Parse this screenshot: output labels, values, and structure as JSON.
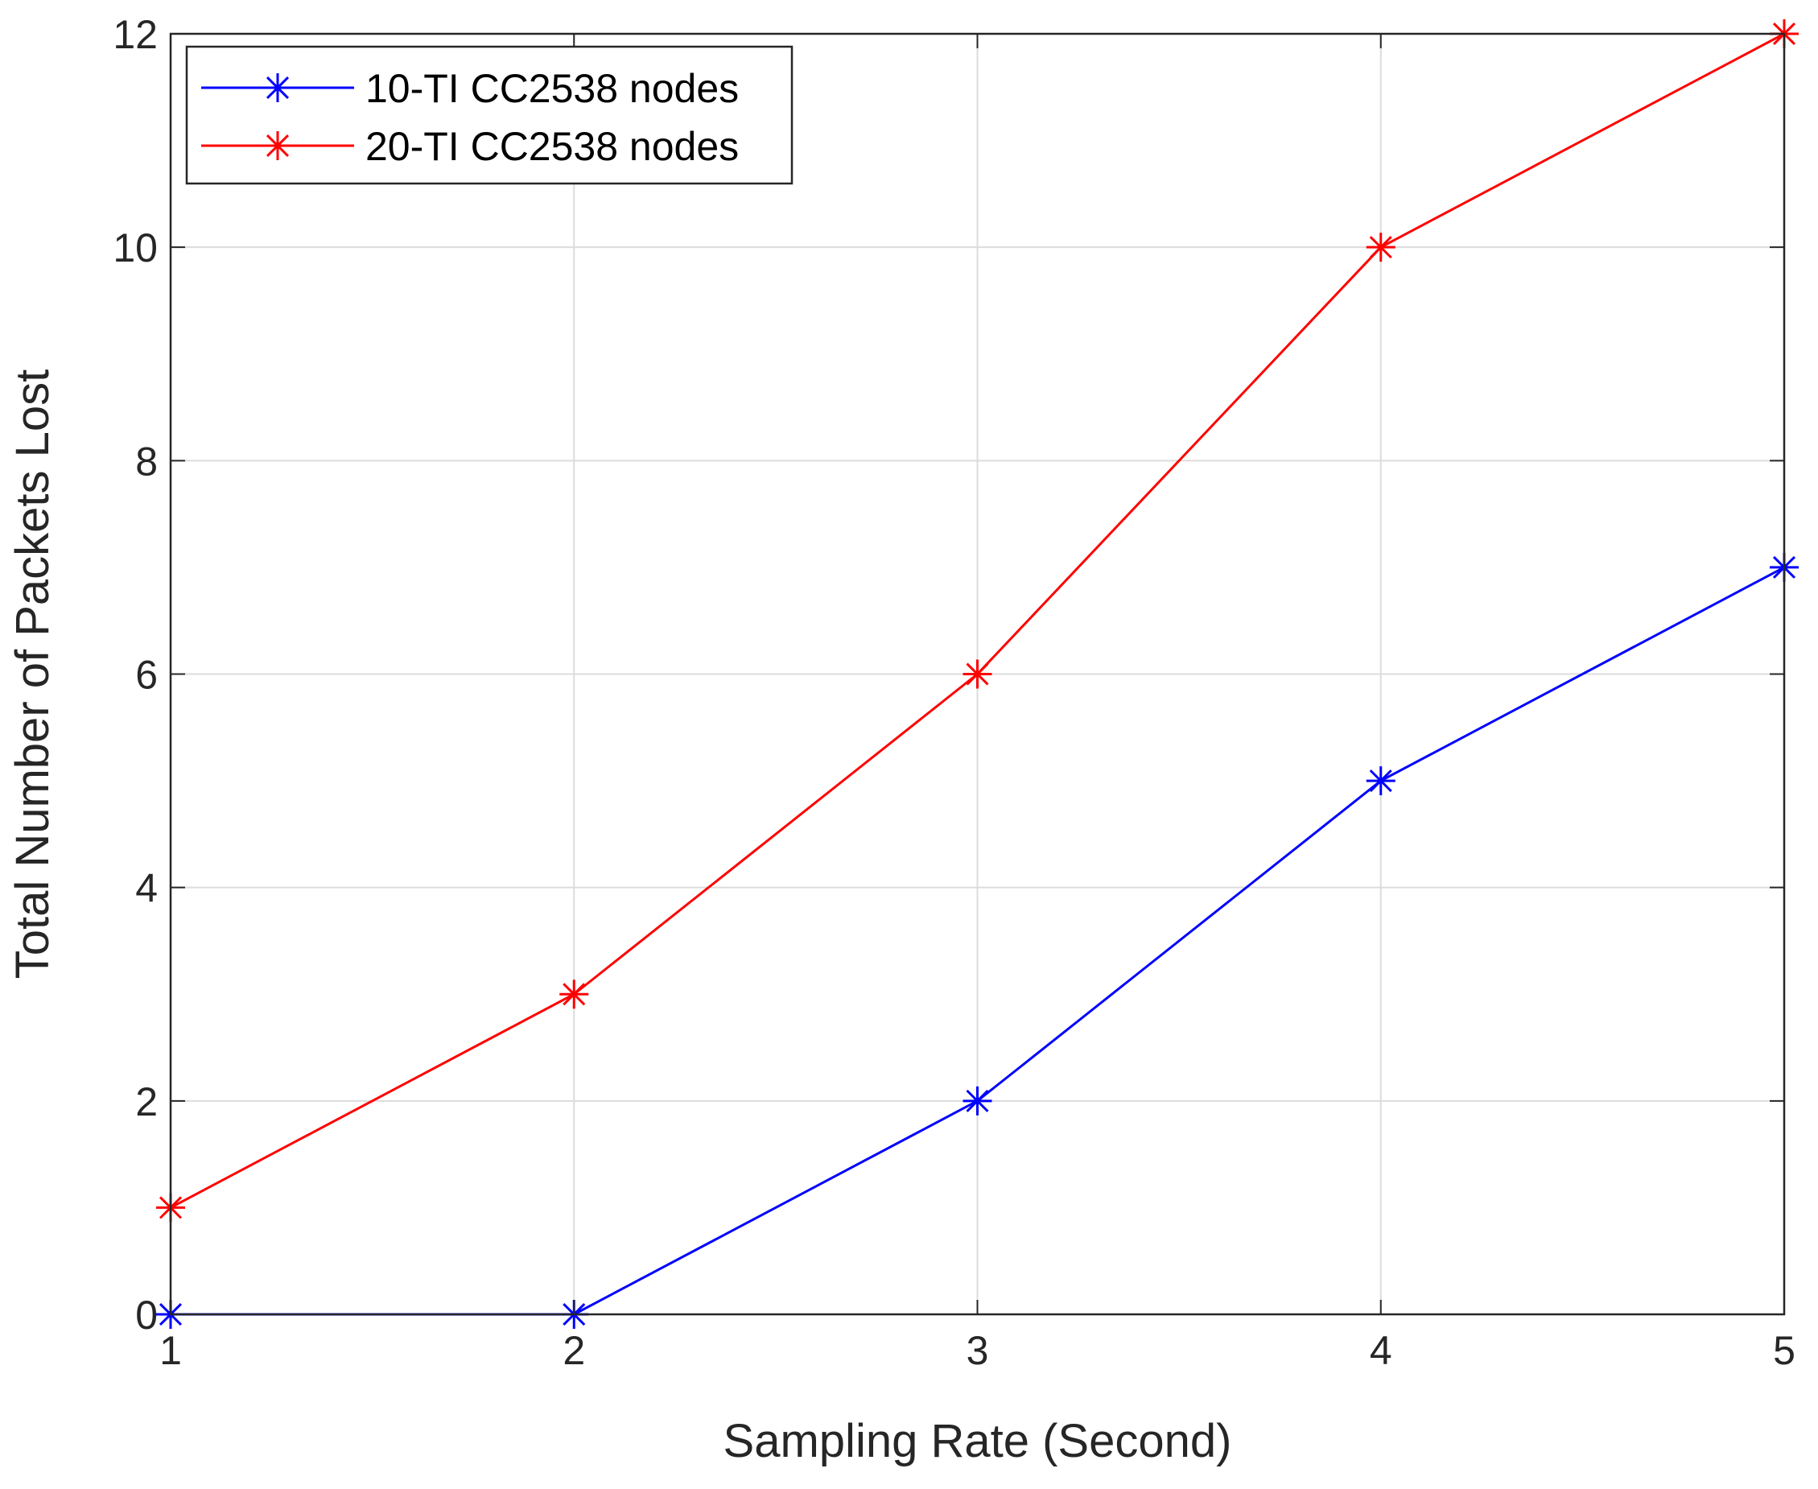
{
  "chart_data": {
    "type": "line",
    "title": "",
    "xlabel": "Sampling Rate (Second)",
    "ylabel": "Total Number of Packets Lost",
    "x": [
      1,
      2,
      3,
      4,
      5
    ],
    "xlim": [
      1,
      5
    ],
    "ylim": [
      0,
      12
    ],
    "xticks": [
      1,
      2,
      3,
      4,
      5
    ],
    "yticks": [
      0,
      2,
      4,
      6,
      8,
      10,
      12
    ],
    "grid": true,
    "legend_position": "top-left",
    "series": [
      {
        "name": "10-TI CC2538 nodes",
        "color": "#0000ff",
        "marker": "asterisk",
        "values": [
          0,
          0,
          2,
          5,
          7
        ]
      },
      {
        "name": "20-TI CC2538 nodes",
        "color": "#ff0000",
        "marker": "asterisk",
        "values": [
          1,
          3,
          6,
          10,
          12
        ]
      }
    ]
  }
}
